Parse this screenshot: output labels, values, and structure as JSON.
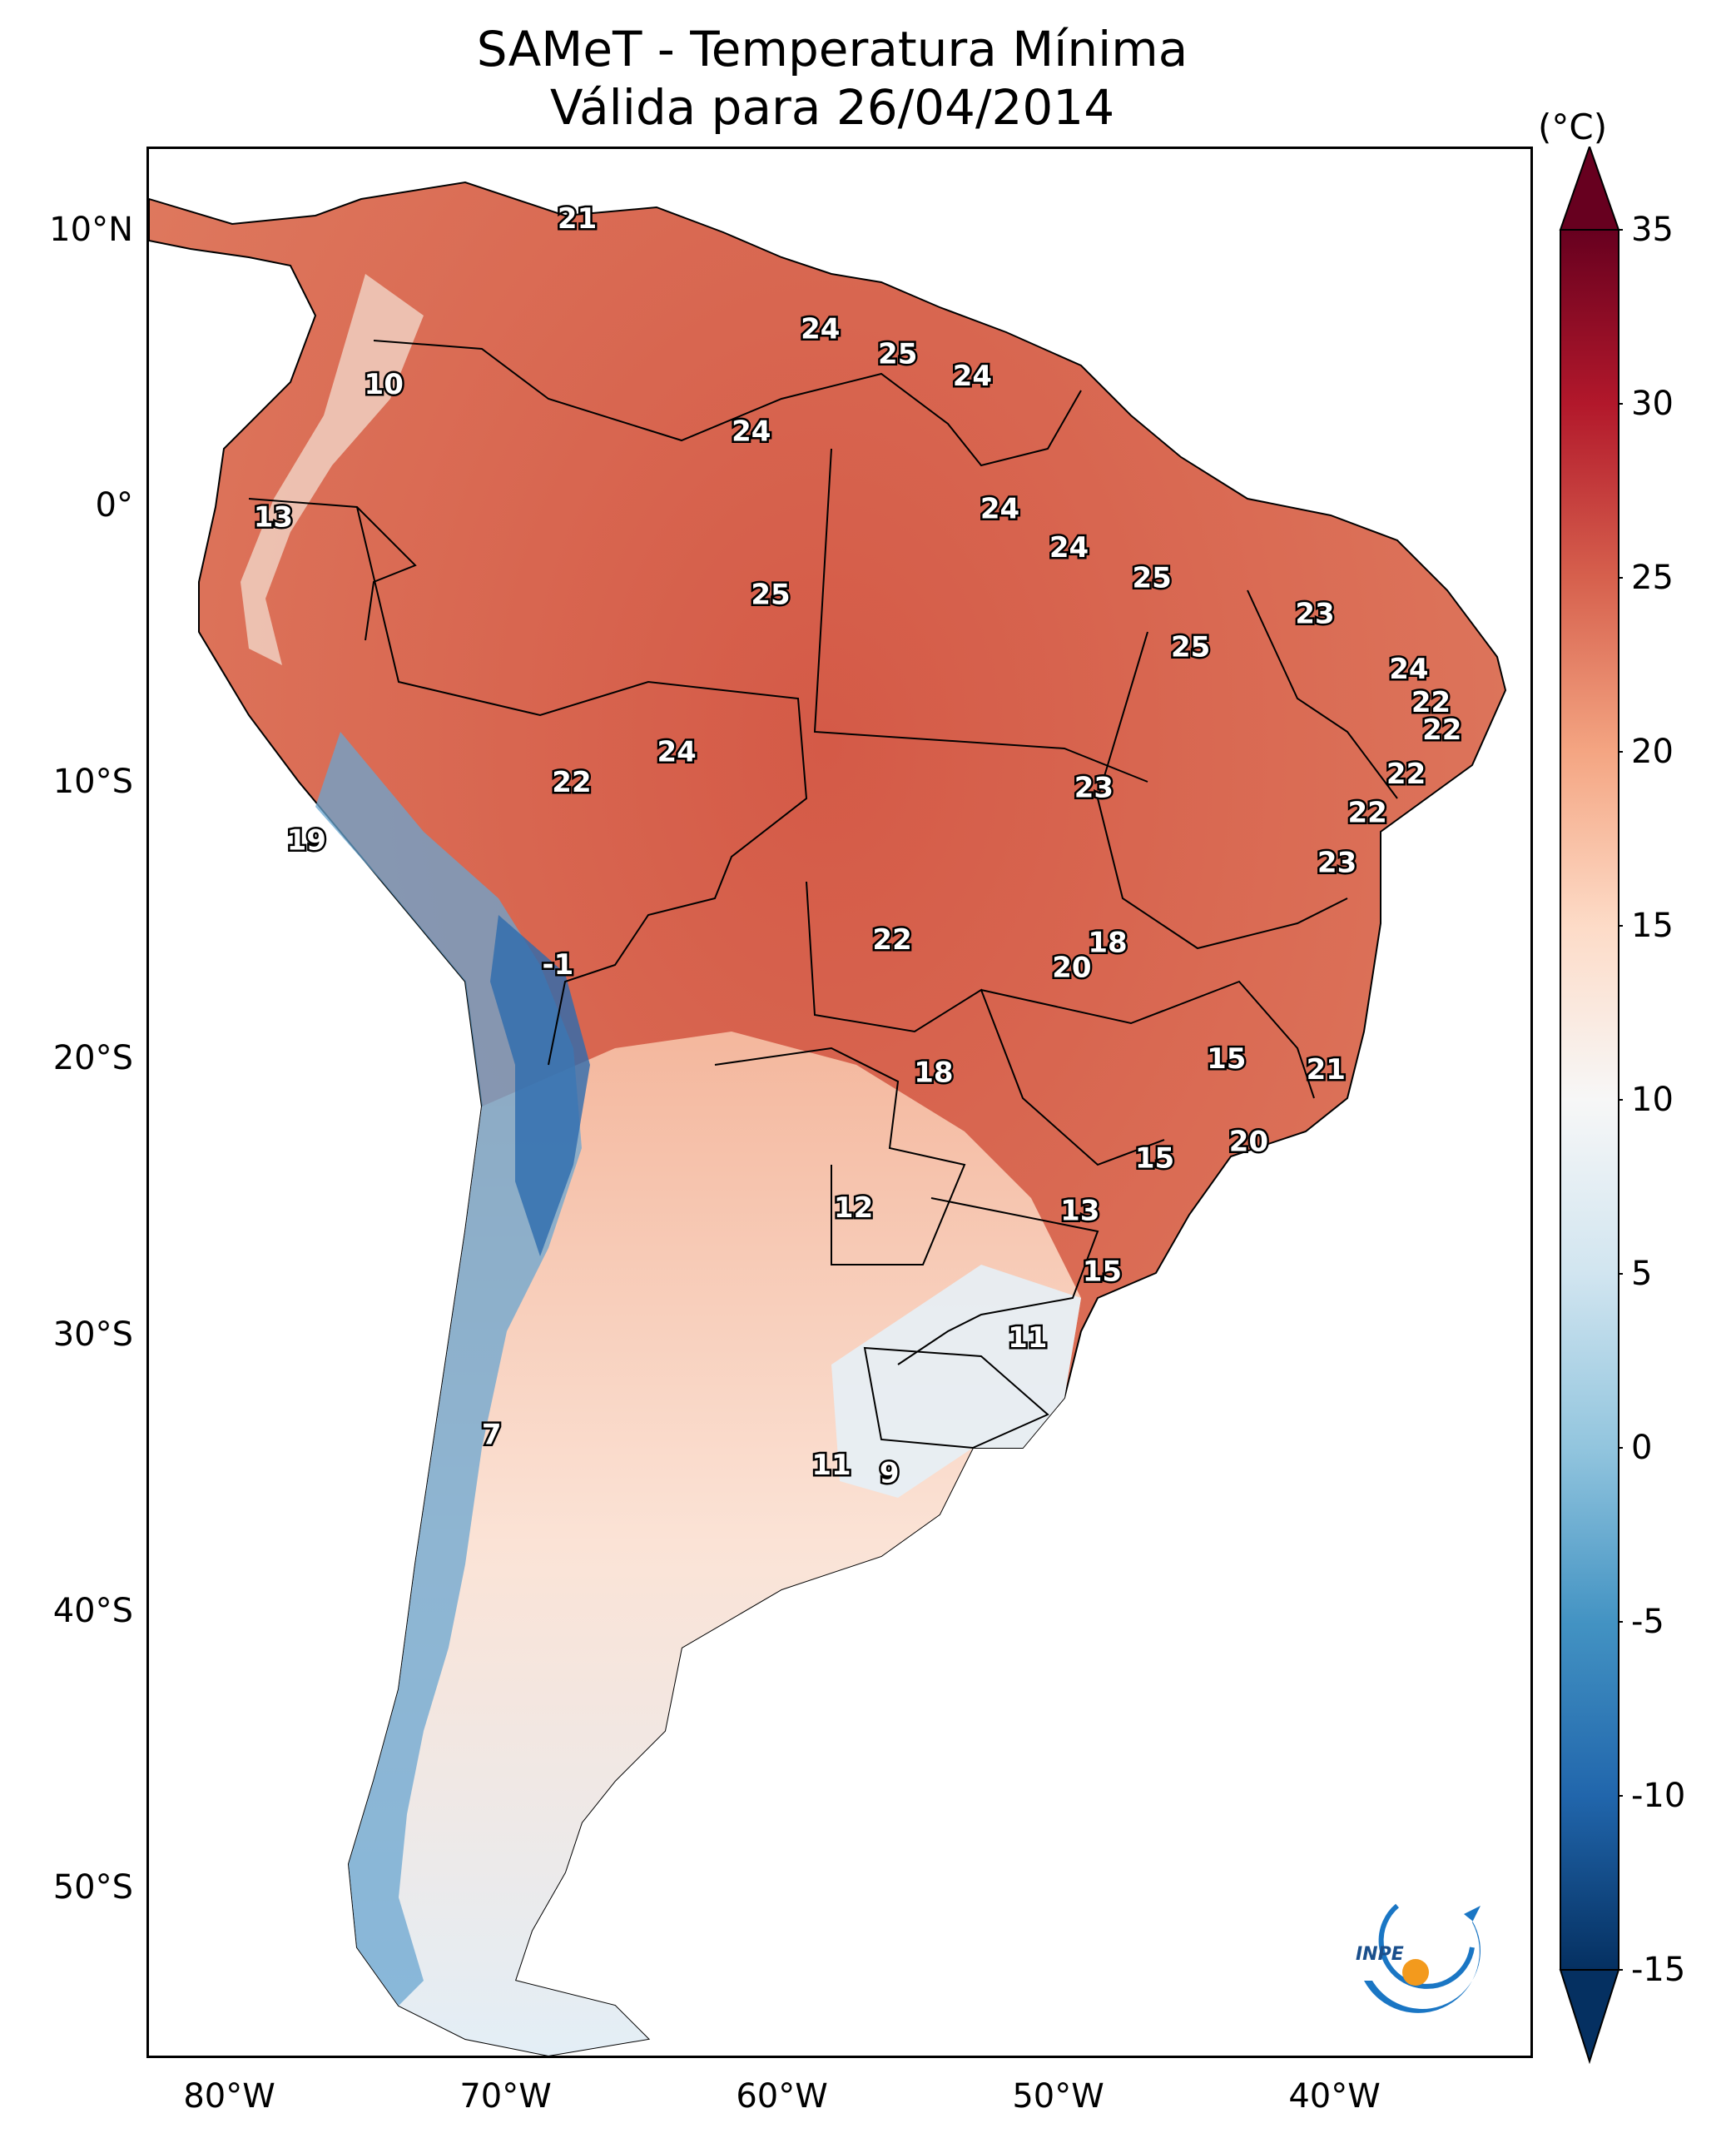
{
  "title": {
    "line1": "SAMeT - Temperatura Mínima",
    "line2": "Válida para 26/04/2014"
  },
  "lat_ticks": [
    "10°N",
    "0°",
    "10°S",
    "20°S",
    "30°S",
    "40°S",
    "50°S"
  ],
  "lon_ticks": [
    "80°W",
    "70°W",
    "60°W",
    "50°W",
    "40°W"
  ],
  "colorbar": {
    "unit": "(°C)",
    "ticks": [
      "35",
      "30",
      "25",
      "20",
      "15",
      "10",
      "5",
      "0",
      "-5",
      "-10",
      "-15"
    ],
    "min": -15,
    "max": 35,
    "colors": [
      "#053061",
      "#2166ac",
      "#4393c3",
      "#92c5de",
      "#d1e5f0",
      "#f7f7f7",
      "#fddbc7",
      "#f4a582",
      "#d6604d",
      "#b2182b",
      "#67001f"
    ]
  },
  "logo_text": "INPE",
  "map_values": [
    {
      "t": "21",
      "lon": -67.5,
      "lat": 10.5
    },
    {
      "t": "10",
      "lon": -74.5,
      "lat": 4.5
    },
    {
      "t": "13",
      "lon": -78.5,
      "lat": -0.3
    },
    {
      "t": "24",
      "lon": -58.7,
      "lat": 6.5
    },
    {
      "t": "25",
      "lon": -55.9,
      "lat": 5.6
    },
    {
      "t": "24",
      "lon": -53.2,
      "lat": 4.8
    },
    {
      "t": "24",
      "lon": -61.2,
      "lat": 2.8
    },
    {
      "t": "24",
      "lon": -52.2,
      "lat": 0.0
    },
    {
      "t": "24",
      "lon": -49.7,
      "lat": -1.4
    },
    {
      "t": "25",
      "lon": -46.7,
      "lat": -2.5
    },
    {
      "t": "25",
      "lon": -60.5,
      "lat": -3.1
    },
    {
      "t": "23",
      "lon": -40.8,
      "lat": -3.8
    },
    {
      "t": "25",
      "lon": -45.3,
      "lat": -5.0
    },
    {
      "t": "24",
      "lon": -37.4,
      "lat": -5.8
    },
    {
      "t": "22",
      "lon": -36.6,
      "lat": -7.0
    },
    {
      "t": "22",
      "lon": -36.2,
      "lat": -8.0
    },
    {
      "t": "24",
      "lon": -63.9,
      "lat": -8.8
    },
    {
      "t": "22",
      "lon": -67.7,
      "lat": -9.9
    },
    {
      "t": "22",
      "lon": -37.5,
      "lat": -9.6
    },
    {
      "t": "23",
      "lon": -48.8,
      "lat": -10.1
    },
    {
      "t": "22",
      "lon": -38.9,
      "lat": -11.0
    },
    {
      "t": "19",
      "lon": -77.3,
      "lat": -12.0
    },
    {
      "t": "23",
      "lon": -40.0,
      "lat": -12.8
    },
    {
      "t": "22",
      "lon": -56.1,
      "lat": -15.6
    },
    {
      "t": "18",
      "lon": -48.3,
      "lat": -15.7
    },
    {
      "t": "20",
      "lon": -49.6,
      "lat": -16.6
    },
    {
      "t": "-1",
      "lon": -68.2,
      "lat": -16.5
    },
    {
      "t": "15",
      "lon": -44.0,
      "lat": -19.9
    },
    {
      "t": "18",
      "lon": -54.6,
      "lat": -20.4
    },
    {
      "t": "21",
      "lon": -40.4,
      "lat": -20.3
    },
    {
      "t": "20",
      "lon": -43.2,
      "lat": -22.9
    },
    {
      "t": "15",
      "lon": -46.6,
      "lat": -23.5
    },
    {
      "t": "12",
      "lon": -57.5,
      "lat": -25.3
    },
    {
      "t": "13",
      "lon": -49.3,
      "lat": -25.4
    },
    {
      "t": "15",
      "lon": -48.5,
      "lat": -27.6
    },
    {
      "t": "11",
      "lon": -51.2,
      "lat": -30.0
    },
    {
      "t": "7",
      "lon": -70.6,
      "lat": -33.5
    },
    {
      "t": "11",
      "lon": -58.3,
      "lat": -34.6
    },
    {
      "t": "9",
      "lon": -56.2,
      "lat": -34.9
    }
  ]
}
